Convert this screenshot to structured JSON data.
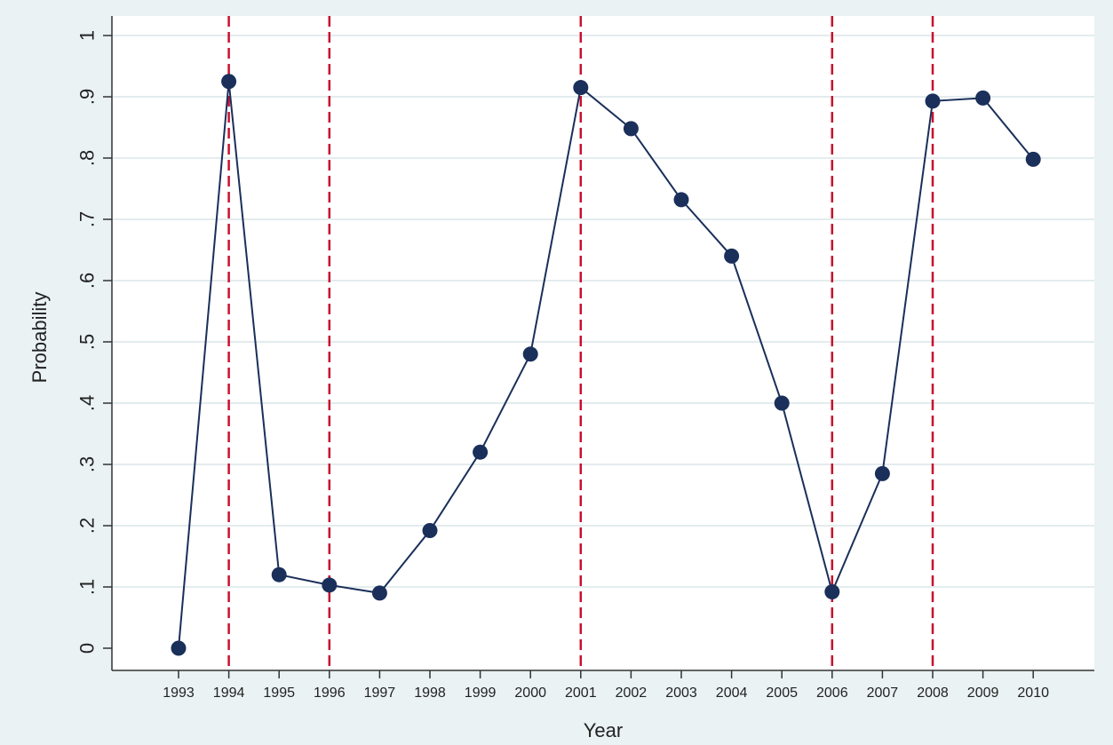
{
  "chart_data": {
    "type": "line",
    "xlabel": "Year",
    "ylabel": "Probability",
    "x": [
      "1993",
      "1994",
      "1995",
      "1996",
      "1997",
      "1998",
      "1999",
      "2000",
      "2001",
      "2002",
      "2003",
      "2004",
      "2005",
      "2006",
      "2007",
      "2008",
      "2009",
      "2010"
    ],
    "values": [
      0.0,
      0.925,
      0.12,
      0.103,
      0.09,
      0.192,
      0.32,
      0.48,
      0.915,
      0.848,
      0.732,
      0.64,
      0.4,
      0.092,
      0.285,
      0.893,
      0.898,
      0.798
    ],
    "ylim": [
      0,
      1
    ],
    "yticks": [
      0,
      0.1,
      0.2,
      0.3,
      0.4,
      0.5,
      0.6,
      0.7,
      0.8,
      0.9,
      1
    ],
    "ytick_labels": [
      "0",
      ".1",
      ".2",
      ".3",
      ".4",
      ".5",
      ".6",
      ".7",
      ".8",
      ".9",
      "1"
    ],
    "vertical_reference_lines": [
      "1994",
      "1996",
      "2001",
      "2006",
      "2008"
    ],
    "grid": true,
    "colors": {
      "background": "#eaf2f3",
      "plot_area": "#ffffff",
      "gridline": "#e3ecee",
      "series": "#1a2f5a",
      "reference_line": "#c8102e",
      "axis": "#333333"
    }
  }
}
